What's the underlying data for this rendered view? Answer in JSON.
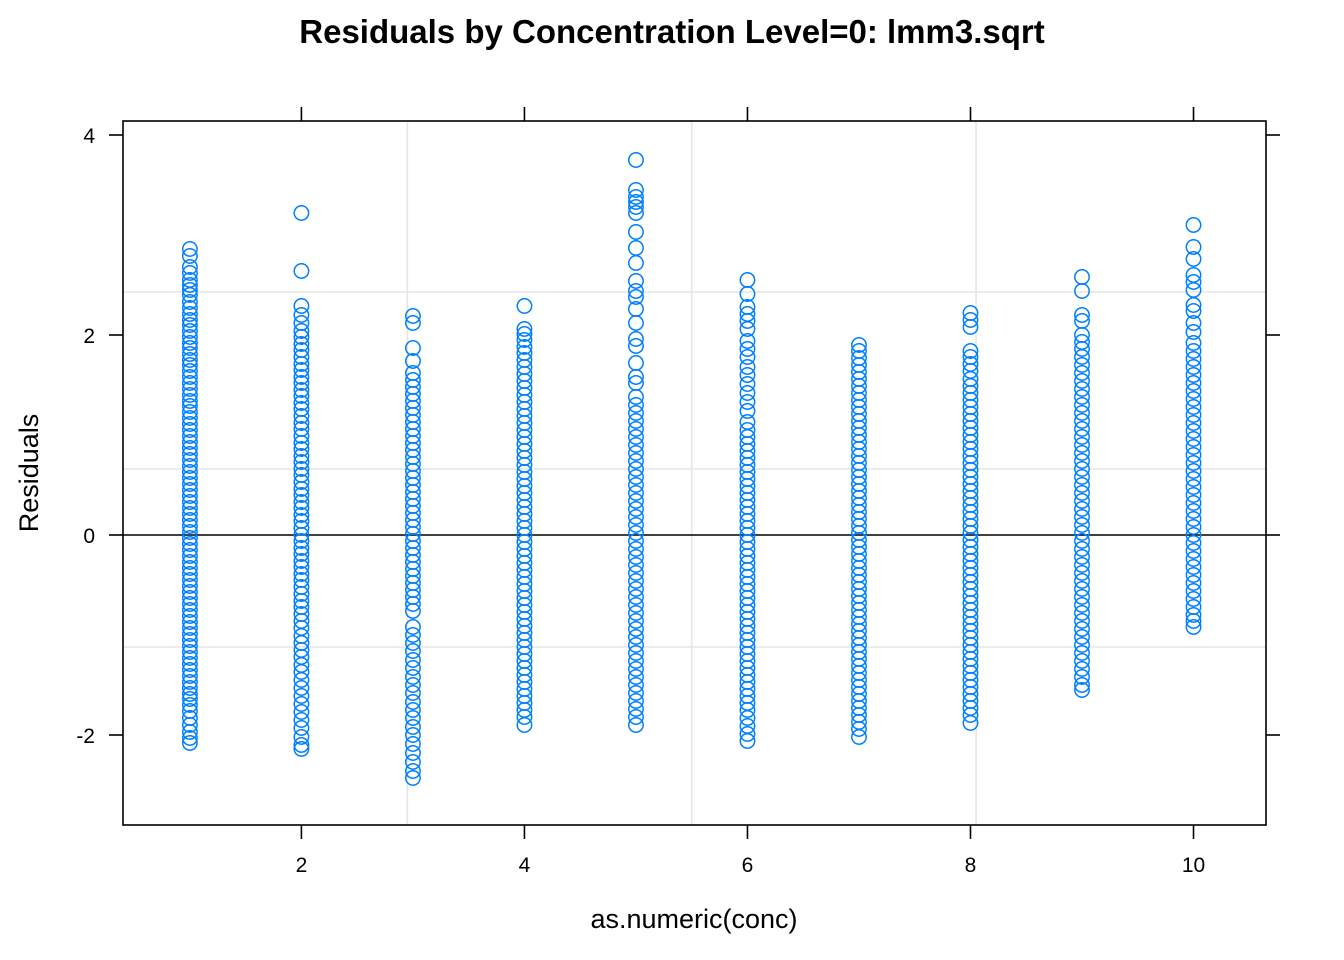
{
  "chart_data": {
    "type": "scatter",
    "title": "Residuals by Concentration Level=0: lmm3.sqrt",
    "xlabel": "as.numeric(conc)",
    "ylabel": "Residuals",
    "xlim": [
      0.4,
      10.65
    ],
    "ylim": [
      -2.9,
      4.14
    ],
    "x_ticks": [
      {
        "value": 2,
        "label": "2"
      },
      {
        "value": 4,
        "label": "4"
      },
      {
        "value": 6,
        "label": "6"
      },
      {
        "value": 8,
        "label": "8"
      },
      {
        "value": 10,
        "label": "10"
      }
    ],
    "y_ticks": [
      {
        "value": -2,
        "label": "-2"
      },
      {
        "value": 0,
        "label": "0"
      },
      {
        "value": 2,
        "label": "2"
      },
      {
        "value": 4,
        "label": "4"
      }
    ],
    "grid": {
      "vertical": [
        2.95,
        5.5,
        8.05
      ],
      "horizontal": [
        -1.12,
        0.66,
        2.43
      ]
    },
    "reference_line": {
      "y": 0
    },
    "point_color": "#0080ff",
    "marker": "open-circle",
    "series": [
      {
        "x": 1,
        "values": [
          2.86,
          2.79,
          2.68,
          2.62,
          2.55,
          2.5,
          2.45,
          2.4,
          2.33,
          2.27,
          2.21,
          2.15,
          2.1,
          2.04,
          1.98,
          1.92,
          1.87,
          1.81,
          1.75,
          1.7,
          1.64,
          1.58,
          1.52,
          1.46,
          1.4,
          1.34,
          1.29,
          1.23,
          1.17,
          1.11,
          1.05,
          0.99,
          0.93,
          0.87,
          0.81,
          0.75,
          0.69,
          0.63,
          0.57,
          0.51,
          0.45,
          0.39,
          0.33,
          0.27,
          0.21,
          0.15,
          0.09,
          0.03,
          -0.03,
          -0.09,
          -0.15,
          -0.21,
          -0.27,
          -0.33,
          -0.39,
          -0.45,
          -0.51,
          -0.57,
          -0.63,
          -0.69,
          -0.75,
          -0.81,
          -0.87,
          -0.93,
          -0.99,
          -1.05,
          -1.11,
          -1.17,
          -1.23,
          -1.29,
          -1.35,
          -1.41,
          -1.47,
          -1.53,
          -1.59,
          -1.64,
          -1.7,
          -1.76,
          -1.83,
          -1.9,
          -1.97,
          -2.03,
          -2.08
        ]
      },
      {
        "x": 2,
        "values": [
          3.22,
          2.64,
          2.29,
          2.2,
          2.12,
          2.04,
          1.98,
          1.91,
          1.85,
          1.78,
          1.71,
          1.65,
          1.58,
          1.52,
          1.45,
          1.39,
          1.32,
          1.26,
          1.19,
          1.12,
          1.06,
          0.99,
          0.92,
          0.86,
          0.79,
          0.73,
          0.66,
          0.6,
          0.53,
          0.46,
          0.4,
          0.33,
          0.27,
          0.2,
          0.14,
          0.07,
          0.0,
          -0.06,
          -0.13,
          -0.19,
          -0.26,
          -0.32,
          -0.39,
          -0.45,
          -0.52,
          -0.59,
          -0.66,
          -0.72,
          -0.79,
          -0.86,
          -0.93,
          -1.01,
          -1.08,
          -1.15,
          -1.22,
          -1.3,
          -1.37,
          -1.45,
          -1.53,
          -1.61,
          -1.69,
          -1.77,
          -1.85,
          -1.93,
          -2.02,
          -2.1,
          -2.14
        ]
      },
      {
        "x": 3,
        "values": [
          2.19,
          2.12,
          1.87,
          1.74,
          1.62,
          1.55,
          1.48,
          1.41,
          1.34,
          1.27,
          1.2,
          1.13,
          1.06,
          0.99,
          0.92,
          0.85,
          0.78,
          0.71,
          0.64,
          0.57,
          0.5,
          0.43,
          0.36,
          0.29,
          0.22,
          0.15,
          0.08,
          0.01,
          -0.06,
          -0.13,
          -0.2,
          -0.27,
          -0.34,
          -0.41,
          -0.48,
          -0.55,
          -0.62,
          -0.69,
          -0.76,
          -0.92,
          -1.0,
          -1.08,
          -1.16,
          -1.25,
          -1.33,
          -1.42,
          -1.5,
          -1.58,
          -1.67,
          -1.75,
          -1.83,
          -1.92,
          -2.0,
          -2.09,
          -2.18,
          -2.27,
          -2.36,
          -2.43
        ]
      },
      {
        "x": 4,
        "values": [
          2.29,
          2.06,
          2.01,
          1.95,
          1.88,
          1.82,
          1.75,
          1.68,
          1.61,
          1.54,
          1.47,
          1.4,
          1.33,
          1.26,
          1.19,
          1.12,
          1.05,
          0.98,
          0.91,
          0.84,
          0.77,
          0.7,
          0.63,
          0.56,
          0.49,
          0.42,
          0.35,
          0.28,
          0.21,
          0.14,
          0.07,
          0.0,
          -0.07,
          -0.14,
          -0.21,
          -0.28,
          -0.35,
          -0.42,
          -0.49,
          -0.56,
          -0.63,
          -0.7,
          -0.77,
          -0.84,
          -0.91,
          -0.98,
          -1.05,
          -1.12,
          -1.19,
          -1.26,
          -1.33,
          -1.4,
          -1.47,
          -1.54,
          -1.61,
          -1.68,
          -1.75,
          -1.82,
          -1.9
        ]
      },
      {
        "x": 5,
        "values": [
          3.75,
          3.45,
          3.38,
          3.33,
          3.28,
          3.22,
          3.03,
          2.87,
          2.72,
          2.54,
          2.44,
          2.38,
          2.26,
          2.12,
          1.96,
          1.89,
          1.72,
          1.58,
          1.52,
          1.38,
          1.3,
          1.22,
          1.14,
          1.06,
          0.98,
          0.9,
          0.82,
          0.74,
          0.66,
          0.58,
          0.5,
          0.42,
          0.34,
          0.26,
          0.18,
          0.1,
          0.02,
          -0.06,
          -0.14,
          -0.22,
          -0.3,
          -0.38,
          -0.46,
          -0.54,
          -0.62,
          -0.7,
          -0.78,
          -0.86,
          -0.94,
          -1.02,
          -1.1,
          -1.18,
          -1.26,
          -1.34,
          -1.42,
          -1.5,
          -1.58,
          -1.66,
          -1.74,
          -1.82,
          -1.9
        ]
      },
      {
        "x": 6,
        "values": [
          2.55,
          2.41,
          2.28,
          2.21,
          2.14,
          2.06,
          1.94,
          1.86,
          1.78,
          1.68,
          1.6,
          1.51,
          1.42,
          1.33,
          1.24,
          1.13,
          1.05,
          0.98,
          0.91,
          0.84,
          0.77,
          0.7,
          0.63,
          0.56,
          0.49,
          0.42,
          0.35,
          0.28,
          0.21,
          0.14,
          0.07,
          0.0,
          -0.07,
          -0.14,
          -0.21,
          -0.28,
          -0.35,
          -0.42,
          -0.49,
          -0.56,
          -0.63,
          -0.7,
          -0.77,
          -0.84,
          -0.91,
          -0.98,
          -1.05,
          -1.12,
          -1.19,
          -1.26,
          -1.33,
          -1.4,
          -1.47,
          -1.54,
          -1.61,
          -1.68,
          -1.75,
          -1.83,
          -1.91,
          -1.99,
          -2.06
        ]
      },
      {
        "x": 7,
        "values": [
          1.9,
          1.84,
          1.77,
          1.7,
          1.63,
          1.56,
          1.49,
          1.42,
          1.35,
          1.28,
          1.21,
          1.14,
          1.07,
          1.0,
          0.93,
          0.86,
          0.79,
          0.72,
          0.65,
          0.58,
          0.51,
          0.44,
          0.37,
          0.3,
          0.23,
          0.16,
          0.09,
          0.02,
          -0.05,
          -0.12,
          -0.19,
          -0.26,
          -0.33,
          -0.4,
          -0.47,
          -0.54,
          -0.61,
          -0.68,
          -0.75,
          -0.82,
          -0.89,
          -0.96,
          -1.03,
          -1.1,
          -1.17,
          -1.24,
          -1.31,
          -1.38,
          -1.45,
          -1.52,
          -1.59,
          -1.66,
          -1.73,
          -1.8,
          -1.87,
          -1.94,
          -2.02
        ]
      },
      {
        "x": 8,
        "values": [
          2.22,
          2.15,
          2.08,
          1.84,
          1.78,
          1.71,
          1.64,
          1.56,
          1.49,
          1.42,
          1.35,
          1.28,
          1.21,
          1.14,
          1.07,
          1.0,
          0.93,
          0.86,
          0.79,
          0.72,
          0.65,
          0.58,
          0.51,
          0.44,
          0.37,
          0.3,
          0.23,
          0.16,
          0.09,
          0.02,
          -0.05,
          -0.12,
          -0.19,
          -0.26,
          -0.33,
          -0.4,
          -0.47,
          -0.54,
          -0.61,
          -0.68,
          -0.75,
          -0.82,
          -0.89,
          -0.96,
          -1.03,
          -1.1,
          -1.17,
          -1.24,
          -1.31,
          -1.38,
          -1.45,
          -1.52,
          -1.59,
          -1.66,
          -1.73,
          -1.8,
          -1.88
        ]
      },
      {
        "x": 9,
        "values": [
          2.58,
          2.44,
          2.2,
          2.14,
          2.0,
          1.93,
          1.86,
          1.78,
          1.7,
          1.62,
          1.54,
          1.46,
          1.38,
          1.3,
          1.22,
          1.14,
          1.06,
          0.98,
          0.9,
          0.82,
          0.74,
          0.66,
          0.58,
          0.5,
          0.42,
          0.34,
          0.26,
          0.18,
          0.1,
          0.02,
          -0.06,
          -0.14,
          -0.22,
          -0.3,
          -0.38,
          -0.46,
          -0.54,
          -0.62,
          -0.7,
          -0.78,
          -0.86,
          -0.94,
          -1.02,
          -1.1,
          -1.18,
          -1.26,
          -1.34,
          -1.42,
          -1.5,
          -1.55
        ]
      },
      {
        "x": 10,
        "values": [
          3.1,
          2.88,
          2.76,
          2.6,
          2.53,
          2.45,
          2.3,
          2.24,
          2.12,
          2.03,
          1.92,
          1.84,
          1.76,
          1.68,
          1.6,
          1.52,
          1.44,
          1.36,
          1.28,
          1.2,
          1.12,
          1.04,
          0.96,
          0.88,
          0.8,
          0.72,
          0.64,
          0.56,
          0.48,
          0.4,
          0.32,
          0.24,
          0.16,
          0.08,
          0.0,
          -0.08,
          -0.16,
          -0.24,
          -0.32,
          -0.4,
          -0.48,
          -0.56,
          -0.64,
          -0.72,
          -0.8,
          -0.86,
          -0.92
        ]
      }
    ]
  }
}
